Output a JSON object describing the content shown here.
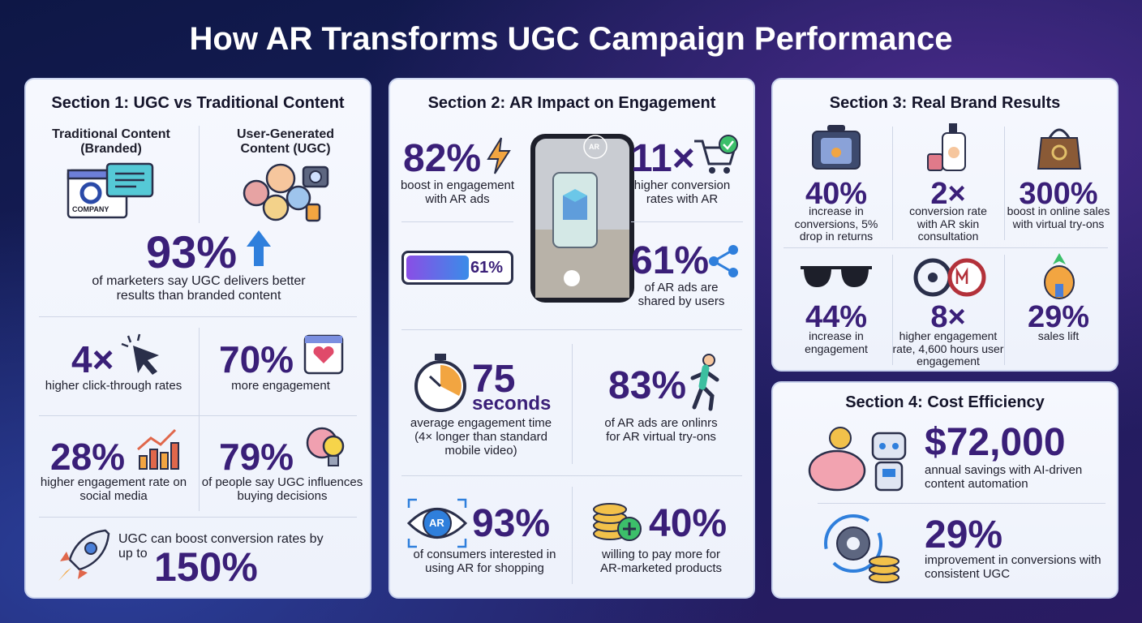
{
  "title": "How AR Transforms UGC Campaign Performance",
  "sections": [
    {
      "heading": "Section 1: UGC vs Traditional Content",
      "comparison": [
        "Traditional Content (Branded)",
        "User-Generated Content (UGC)"
      ],
      "company_label": "COMPANY",
      "hero": {
        "value": "93%",
        "text": "of marketers say UGC delivers better results than branded content"
      },
      "stats": [
        {
          "value": "4×",
          "text": "higher click-through rates"
        },
        {
          "value": "70%",
          "text": "more engagement"
        },
        {
          "value": "28%",
          "text": "higher engagement rate on social media"
        },
        {
          "value": "79%",
          "text": "of people say UGC influences buying decisions"
        }
      ],
      "callout": {
        "text": "UGC can boost conversion rates by up to",
        "value": "150%"
      }
    },
    {
      "heading": "Section 2: AR Impact on Engagement",
      "phone_badge": "AR",
      "progress": {
        "value": 61,
        "label": "61%"
      },
      "stats": [
        {
          "value": "82%",
          "text": "boost in engagement with AR ads"
        },
        {
          "value": "11×",
          "text": "higher conversion rates with AR"
        },
        {
          "value": "61%",
          "text": "of AR ads are shared by users"
        },
        {
          "value": "75",
          "unit": "seconds",
          "text": "average engagement time (4× longer than standard mobile video)"
        },
        {
          "value": "83%",
          "text": "of AR ads are onlinrs for AR virtual try-ons"
        },
        {
          "value": "93%",
          "text": "of consumers interested in using AR for shopping"
        },
        {
          "value": "40%",
          "text": "willing to pay more for AR-marketed products"
        }
      ],
      "eye_label": "AR"
    },
    {
      "heading": "Section 3: Real Brand Results",
      "results": [
        {
          "value": "40%",
          "text": "increase in conversions, 5% drop in returns"
        },
        {
          "value": "2×",
          "text": "conversion rate with AR skin consultation"
        },
        {
          "value": "300%",
          "text": "boost in online sales with virtual try-ons"
        },
        {
          "value": "44%",
          "text": "increase in engagement"
        },
        {
          "value": "8×",
          "text": "higher engagement rate, 4,600 hours user engagement"
        },
        {
          "value": "29%",
          "text": "sales lift"
        }
      ]
    },
    {
      "heading": "Section 4: Cost Efficiency",
      "stats": [
        {
          "value": "$72,000",
          "text": "annual savings with AI-driven content automation"
        },
        {
          "value": "29%",
          "text": "improvement in conversions with consistent UGC"
        }
      ]
    }
  ]
}
